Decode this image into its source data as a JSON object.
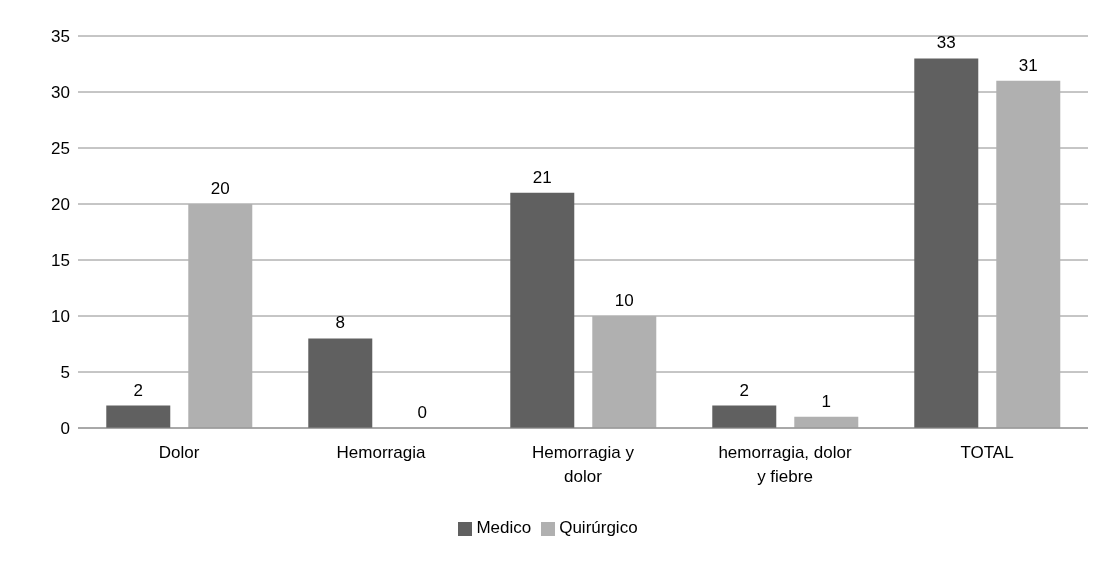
{
  "chart_data": {
    "type": "bar",
    "categories": [
      "Dolor",
      "Hemorragia",
      "Hemorragia y dolor",
      "hemorragia, dolor y fiebre",
      "TOTAL"
    ],
    "series": [
      {
        "name": "Medico",
        "color": "#606060",
        "values": [
          2,
          8,
          21,
          2,
          33
        ]
      },
      {
        "name": "Quirúrgico",
        "color": "#b0b0b0",
        "values": [
          20,
          0,
          10,
          1,
          31
        ]
      }
    ],
    "ylim": [
      0,
      35
    ],
    "yticks": [
      0,
      5,
      10,
      15,
      20,
      25,
      30,
      35
    ],
    "grid": "y",
    "legend": "bottom",
    "data_labels": true
  }
}
